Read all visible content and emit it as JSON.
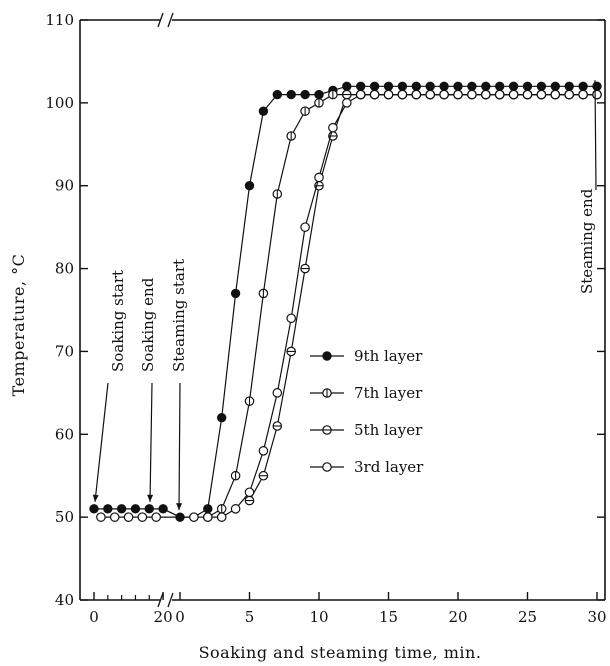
{
  "chart_data": {
    "type": "line",
    "title": "",
    "xlabel": "Soaking and steaming time, min.",
    "ylabel": "Temperature, °C",
    "ylim": [
      40,
      110
    ],
    "yticks": [
      "40",
      "50",
      "60",
      "70",
      "80",
      "90",
      "100",
      "110"
    ],
    "x_axis_segments": [
      {
        "phase": "soaking",
        "ticks": [
          "0",
          "20"
        ],
        "range": [
          0,
          22
        ]
      },
      {
        "phase": "steaming",
        "ticks": [
          "0",
          "5",
          "10",
          "15",
          "20",
          "25",
          "30"
        ],
        "range": [
          0,
          30
        ]
      }
    ],
    "annotations": [
      "Soaking start",
      "Soaking end",
      "Steaming start",
      "Steaming end"
    ],
    "legend_position": "center",
    "series": [
      {
        "name": "9th layer",
        "marker": "filled-circle",
        "soaking": {
          "x": [
            0,
            4,
            8,
            12,
            16,
            20
          ],
          "y": [
            51,
            51,
            51,
            51,
            51,
            51
          ]
        },
        "steaming": {
          "x": [
            0,
            1,
            2,
            3,
            4,
            5,
            6,
            7,
            8,
            9,
            10,
            11,
            12,
            13,
            14,
            15,
            16,
            17,
            18,
            19,
            20,
            21,
            22,
            23,
            24,
            25,
            26,
            27,
            28,
            29,
            30
          ],
          "y": [
            50,
            50,
            51,
            62,
            77,
            90,
            99,
            101,
            101,
            101,
            101,
            101.5,
            102,
            102,
            102,
            102,
            102,
            102,
            102,
            102,
            102,
            102,
            102,
            102,
            102,
            102,
            102,
            102,
            102,
            102,
            102
          ]
        }
      },
      {
        "name": "7th layer",
        "marker": "circle-vertical-bar",
        "soaking": {
          "x": [],
          "y": []
        },
        "steaming": {
          "x": [
            2,
            3,
            4,
            5,
            6,
            7,
            8,
            9,
            10,
            11,
            12,
            13,
            14,
            15,
            16,
            17,
            18,
            19,
            20,
            21,
            22,
            23,
            24,
            25,
            26,
            27,
            28,
            29,
            30
          ],
          "y": [
            50,
            51,
            55,
            64,
            77,
            89,
            96,
            99,
            100,
            101,
            101,
            101,
            101,
            101,
            101,
            101,
            101,
            101,
            101,
            101,
            101,
            101,
            101,
            101,
            101,
            101,
            101,
            101,
            101
          ]
        }
      },
      {
        "name": "5th layer",
        "marker": "circle-horizontal-bar",
        "soaking": {
          "x": [],
          "y": []
        },
        "steaming": {
          "x": [
            5,
            6,
            7,
            8,
            9,
            10,
            11,
            12,
            13,
            14,
            15,
            16,
            17,
            18,
            19,
            20,
            21,
            22,
            23,
            24,
            25,
            26,
            27,
            28,
            29,
            30
          ],
          "y": [
            52,
            55,
            61,
            70,
            80,
            90,
            96,
            101,
            101,
            101,
            101,
            101,
            101,
            101,
            101,
            101,
            101,
            101,
            101,
            101,
            101,
            101,
            101,
            101,
            101,
            101
          ]
        }
      },
      {
        "name": "3rd layer",
        "marker": "open-circle",
        "soaking": {
          "x": [
            2,
            6,
            10,
            14,
            18
          ],
          "y": [
            50,
            50,
            50,
            50,
            50
          ]
        },
        "steaming": {
          "x": [
            1,
            2,
            3,
            4,
            5,
            6,
            7,
            8,
            9,
            10,
            11,
            12,
            13,
            14,
            15,
            16,
            17,
            18,
            19,
            20,
            21,
            22,
            23,
            24,
            25,
            26,
            27,
            28,
            29,
            30
          ],
          "y": [
            50,
            50,
            50,
            51,
            53,
            58,
            65,
            74,
            85,
            91,
            97,
            100,
            101,
            101,
            101,
            101,
            101,
            101,
            101,
            101,
            101,
            101,
            101,
            101,
            101,
            101,
            101,
            101,
            101,
            101
          ]
        }
      }
    ]
  }
}
